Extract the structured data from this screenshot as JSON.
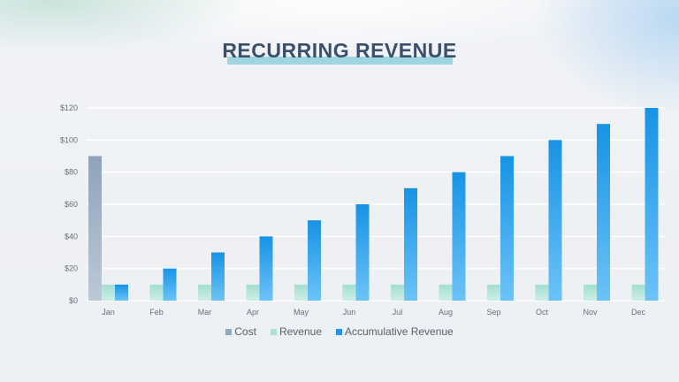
{
  "title": "RECURRING REVENUE",
  "chart_data": {
    "type": "bar",
    "categories": [
      "Jan",
      "Feb",
      "Mar",
      "Apr",
      "May",
      "Jun",
      "Jul",
      "Aug",
      "Sep",
      "Oct",
      "Nov",
      "Dec"
    ],
    "series": [
      {
        "name": "Cost",
        "color": "#93a7bd",
        "values": [
          90,
          null,
          null,
          null,
          null,
          null,
          null,
          null,
          null,
          null,
          null,
          null
        ]
      },
      {
        "name": "Revenue",
        "color": "#a8e3d6",
        "values": [
          10,
          10,
          10,
          10,
          10,
          10,
          10,
          10,
          10,
          10,
          10,
          10
        ]
      },
      {
        "name": "Accumulative Revenue",
        "color": "#2196e6",
        "values": [
          10,
          20,
          30,
          40,
          50,
          60,
          70,
          80,
          90,
          100,
          110,
          120
        ]
      }
    ],
    "y_ticks": [
      "$0",
      "$20",
      "$40",
      "$60",
      "$80",
      "$100",
      "$120"
    ],
    "ylim": [
      0,
      120
    ],
    "grid": true,
    "legend_position": "bottom"
  }
}
